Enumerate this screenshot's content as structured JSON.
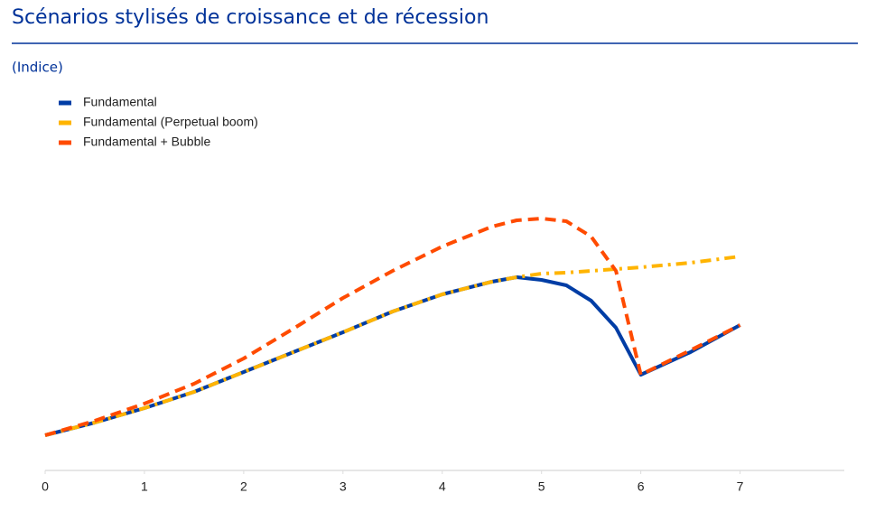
{
  "chart_data": {
    "type": "line",
    "title": "Scénarios stylisés de croissance et de récession",
    "subtitle": "(Indice)",
    "x": [
      0,
      0.5,
      1,
      1.5,
      2,
      2.5,
      3,
      3.5,
      4,
      4.5,
      4.75,
      5,
      5.25,
      5.5,
      5.75,
      6,
      6.5,
      7
    ],
    "series": [
      {
        "name": "Fundamental",
        "color": "#003da5",
        "dash": "solid",
        "values": [
          0.39,
          0.53,
          0.69,
          0.87,
          1.09,
          1.31,
          1.53,
          1.76,
          1.95,
          2.09,
          2.14,
          2.11,
          2.05,
          1.88,
          1.58,
          1.06,
          1.31,
          1.61
        ]
      },
      {
        "name": "Fundamental (Perpetual boom)",
        "color": "#ffb400",
        "dash": "dashdot",
        "values": [
          0.39,
          0.53,
          0.69,
          0.87,
          1.09,
          1.31,
          1.53,
          1.76,
          1.95,
          2.09,
          2.14,
          2.18,
          2.19,
          2.21,
          2.23,
          2.25,
          2.3,
          2.37
        ]
      },
      {
        "name": "Fundamental + Bubble",
        "color": "#ff4b00",
        "dash": "dashed",
        "values": [
          0.39,
          0.55,
          0.74,
          0.96,
          1.24,
          1.57,
          1.91,
          2.21,
          2.48,
          2.7,
          2.77,
          2.79,
          2.76,
          2.59,
          2.21,
          1.06,
          1.33,
          1.61
        ]
      }
    ],
    "xlim": [
      0,
      8.05
    ],
    "xticks": [
      0,
      1,
      2,
      3,
      4,
      5,
      6,
      7
    ],
    "ylim": [
      0,
      3.5
    ],
    "legend": "top-left"
  }
}
